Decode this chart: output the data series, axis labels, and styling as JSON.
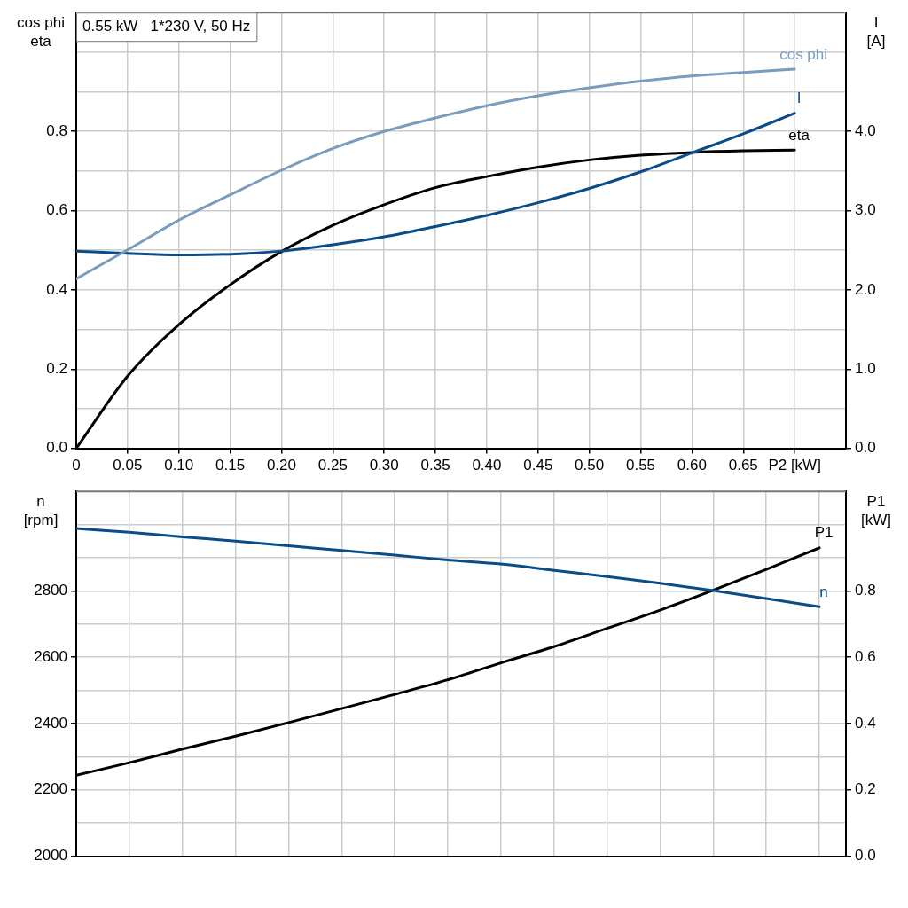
{
  "chart_data": [
    {
      "type": "line",
      "title": "0.55 kW   1*230 V, 50 Hz",
      "ylabel": "cos phi\neta",
      "y2label": "I\n[A]",
      "marker": "none",
      "grid": true,
      "x": [
        0,
        0.05,
        0.1,
        0.15,
        0.2,
        0.25,
        0.3,
        0.35,
        0.4,
        0.45,
        0.5,
        0.55,
        0.6,
        0.65,
        0.7
      ],
      "xlim": [
        0,
        0.75
      ],
      "xticks": [
        0,
        0.05,
        {
          "value": 0.1,
          "label": "0.10"
        },
        0.15,
        {
          "value": 0.2,
          "label": "0.20"
        },
        0.25,
        {
          "value": 0.3,
          "label": "0.30"
        },
        0.35,
        {
          "value": 0.4,
          "label": "0.40"
        },
        0.45,
        {
          "value": 0.5,
          "label": "0.50"
        },
        0.55,
        {
          "value": 0.6,
          "label": "0.60"
        },
        0.65,
        {
          "value": 0.7,
          "label": "P2 [kW]"
        }
      ],
      "ylim": [
        0,
        1.1
      ],
      "yticks": [
        {
          "value": 0,
          "label": "0.0"
        },
        {
          "value": 0.1,
          "label": null
        },
        0.2,
        {
          "value": 0.3,
          "label": null
        },
        0.4,
        {
          "value": 0.5,
          "label": null
        },
        0.6,
        {
          "value": 0.7,
          "label": null
        },
        0.8,
        {
          "value": 0.9,
          "label": null
        },
        {
          "value": 1.0,
          "label": null
        }
      ],
      "y2lim": [
        0,
        5.5
      ],
      "y2ticks": [
        {
          "value": 0,
          "label": "0.0"
        },
        {
          "value": 1,
          "label": "1.0"
        },
        {
          "value": 2,
          "label": "2.0"
        },
        {
          "value": 3,
          "label": "3.0"
        },
        {
          "value": 4,
          "label": "4.0"
        }
      ],
      "series": [
        {
          "name": "cos phi",
          "color": "#7a9cbf",
          "values": [
            0.428,
            0.501,
            0.576,
            0.64,
            0.702,
            0.757,
            0.8,
            0.834,
            0.865,
            0.89,
            0.91,
            0.927,
            0.94,
            0.949,
            0.957
          ]
        },
        {
          "name": "I",
          "color": "#0a4c85",
          "axis": "y2",
          "values": [
            2.49,
            2.46,
            2.44,
            2.45,
            2.49,
            2.57,
            2.67,
            2.8,
            2.94,
            3.1,
            3.28,
            3.49,
            3.73,
            3.97,
            4.23
          ]
        },
        {
          "name": "eta",
          "color": "#000000",
          "values": [
            0,
            0.182,
            0.312,
            0.413,
            0.497,
            0.563,
            0.615,
            0.658,
            0.686,
            0.71,
            0.728,
            0.74,
            0.747,
            0.751,
            0.753
          ]
        }
      ]
    },
    {
      "type": "line",
      "ylabel": "n\n[rpm]",
      "y2label": "P1\n[kW]",
      "marker": "none",
      "grid": true,
      "categories": [
        null,
        null,
        null,
        null,
        null,
        null,
        null,
        null,
        null,
        null,
        null,
        null,
        null,
        null,
        null
      ],
      "ylim": [
        2000,
        3100
      ],
      "yticks": [
        2000,
        {
          "value": 2100,
          "label": null
        },
        2200,
        {
          "value": 2300,
          "label": null
        },
        2400,
        {
          "value": 2500,
          "label": null
        },
        2600,
        {
          "value": 2700,
          "label": null
        },
        2800,
        {
          "value": 2900,
          "label": null
        },
        {
          "value": 3000,
          "label": null
        }
      ],
      "y2lim": [
        0,
        1.1
      ],
      "y2ticks": [
        {
          "value": 0,
          "label": "0.0"
        },
        0.2,
        0.4,
        0.6,
        0.8
      ],
      "series": [
        {
          "name": "n",
          "color": "#0a4c85",
          "values": [
            2988,
            2977,
            2963,
            2950,
            2936,
            2922,
            2908,
            2893,
            2881,
            2862,
            2843,
            2823,
            2801,
            2777,
            2752
          ]
        },
        {
          "name": "P1",
          "color": "#000000",
          "axis": "y2",
          "values": [
            0.244,
            0.282,
            0.323,
            0.362,
            0.403,
            0.445,
            0.488,
            0.532,
            0.583,
            0.632,
            0.687,
            0.742,
            0.802,
            0.865,
            0.93
          ]
        }
      ]
    }
  ]
}
